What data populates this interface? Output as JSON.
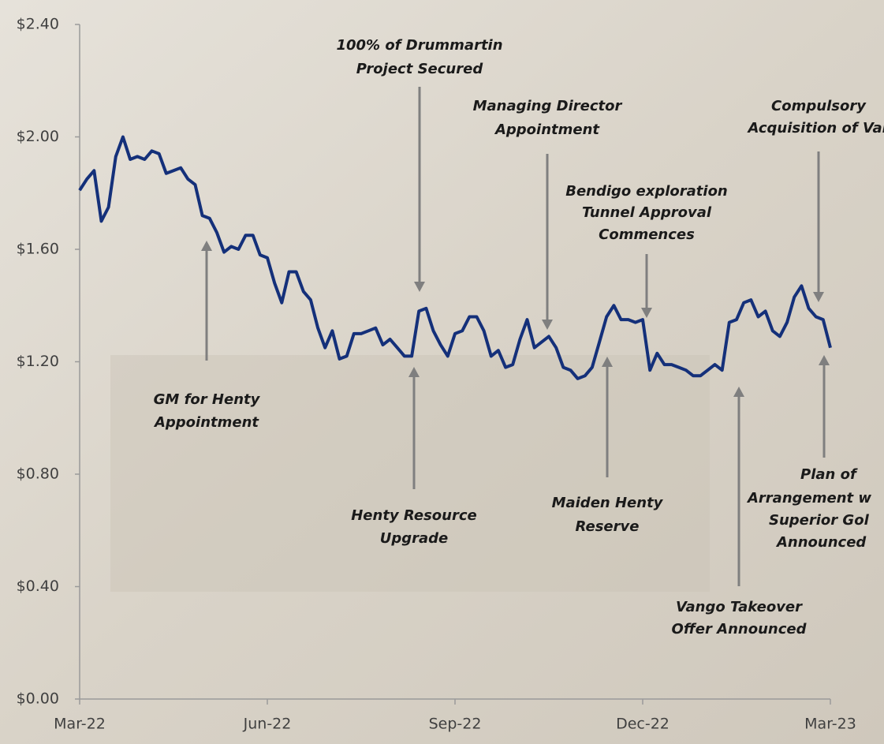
{
  "chart_data": {
    "type": "line",
    "categories": [
      "Mar-22",
      null,
      null,
      null,
      null,
      null,
      null,
      null,
      null,
      null,
      null,
      null,
      null,
      null,
      null,
      null,
      null,
      null,
      null,
      null,
      null,
      null,
      null,
      null,
      null,
      null,
      "Jun-22",
      null,
      null,
      null,
      null,
      null,
      null,
      null,
      null,
      null,
      null,
      null,
      null,
      null,
      null,
      null,
      null,
      null,
      null,
      null,
      null,
      null,
      null,
      null,
      null,
      null,
      "Sep-22",
      null,
      null,
      null,
      null,
      null,
      null,
      null,
      null,
      null,
      null,
      null,
      null,
      null,
      null,
      null,
      null,
      null,
      null,
      null,
      null,
      null,
      null,
      null,
      null,
      null,
      "Dec-22",
      null,
      null,
      null,
      null,
      null,
      null,
      null,
      null,
      null,
      null,
      null,
      null,
      null,
      null,
      null,
      null,
      null,
      null,
      null,
      null,
      null,
      null,
      null,
      null,
      null,
      "Mar-23"
    ],
    "values": [
      1.81,
      1.85,
      1.88,
      1.7,
      1.75,
      1.93,
      2.0,
      1.92,
      1.93,
      1.92,
      1.95,
      1.94,
      1.87,
      1.88,
      1.89,
      1.85,
      1.83,
      1.72,
      1.71,
      1.66,
      1.59,
      1.61,
      1.6,
      1.65,
      1.65,
      1.58,
      1.57,
      1.48,
      1.41,
      1.52,
      1.52,
      1.45,
      1.42,
      1.32,
      1.25,
      1.31,
      1.21,
      1.22,
      1.3,
      1.3,
      1.31,
      1.32,
      1.26,
      1.28,
      1.25,
      1.22,
      1.22,
      1.38,
      1.39,
      1.31,
      1.26,
      1.22,
      1.3,
      1.31,
      1.36,
      1.36,
      1.31,
      1.22,
      1.24,
      1.18,
      1.19,
      1.28,
      1.35,
      1.25,
      1.27,
      1.29,
      1.25,
      1.18,
      1.17,
      1.14,
      1.15,
      1.18,
      1.27,
      1.36,
      1.4,
      1.35,
      1.35,
      1.34,
      1.35,
      1.17,
      1.23,
      1.19,
      1.19,
      1.18,
      1.17,
      1.15,
      1.15,
      1.17,
      1.19,
      1.17,
      1.34,
      1.35,
      1.41,
      1.42,
      1.36,
      1.38,
      1.31,
      1.29,
      1.34,
      1.43,
      1.47,
      1.39,
      1.36,
      1.35,
      1.25
    ],
    "color": "#14307a",
    "ylim": [
      0,
      2.4
    ],
    "yticks": [
      {
        "value": 0,
        "label": "$0.00"
      },
      {
        "value": 0.4,
        "label": "$0.40"
      },
      {
        "value": 0.8,
        "label": "$0.80"
      },
      {
        "value": 1.2,
        "label": "$1.20"
      },
      {
        "value": 1.6,
        "label": "$1.60"
      },
      {
        "value": 2.0,
        "label": "$2.00"
      },
      {
        "value": 2.4,
        "label": "$2.40"
      }
    ],
    "annotations": [
      [
        "GM for Henty",
        "Appointment"
      ],
      [
        "Henty Resource",
        "Upgrade"
      ],
      [
        "100% of Drummartin",
        "Project Secured"
      ],
      [
        "Managing Director",
        "Appointment"
      ],
      [
        "Bendigo exploration",
        "Tunnel Approval",
        "Commences"
      ],
      [
        "Maiden Henty",
        "Reserve"
      ],
      [
        "Vango Takeover",
        "Offer Announced"
      ],
      [
        "Compulsory",
        "Acquisition of Var"
      ],
      [
        "Plan of",
        "Arrangement w",
        "Superior Gol",
        "Announced"
      ]
    ]
  }
}
